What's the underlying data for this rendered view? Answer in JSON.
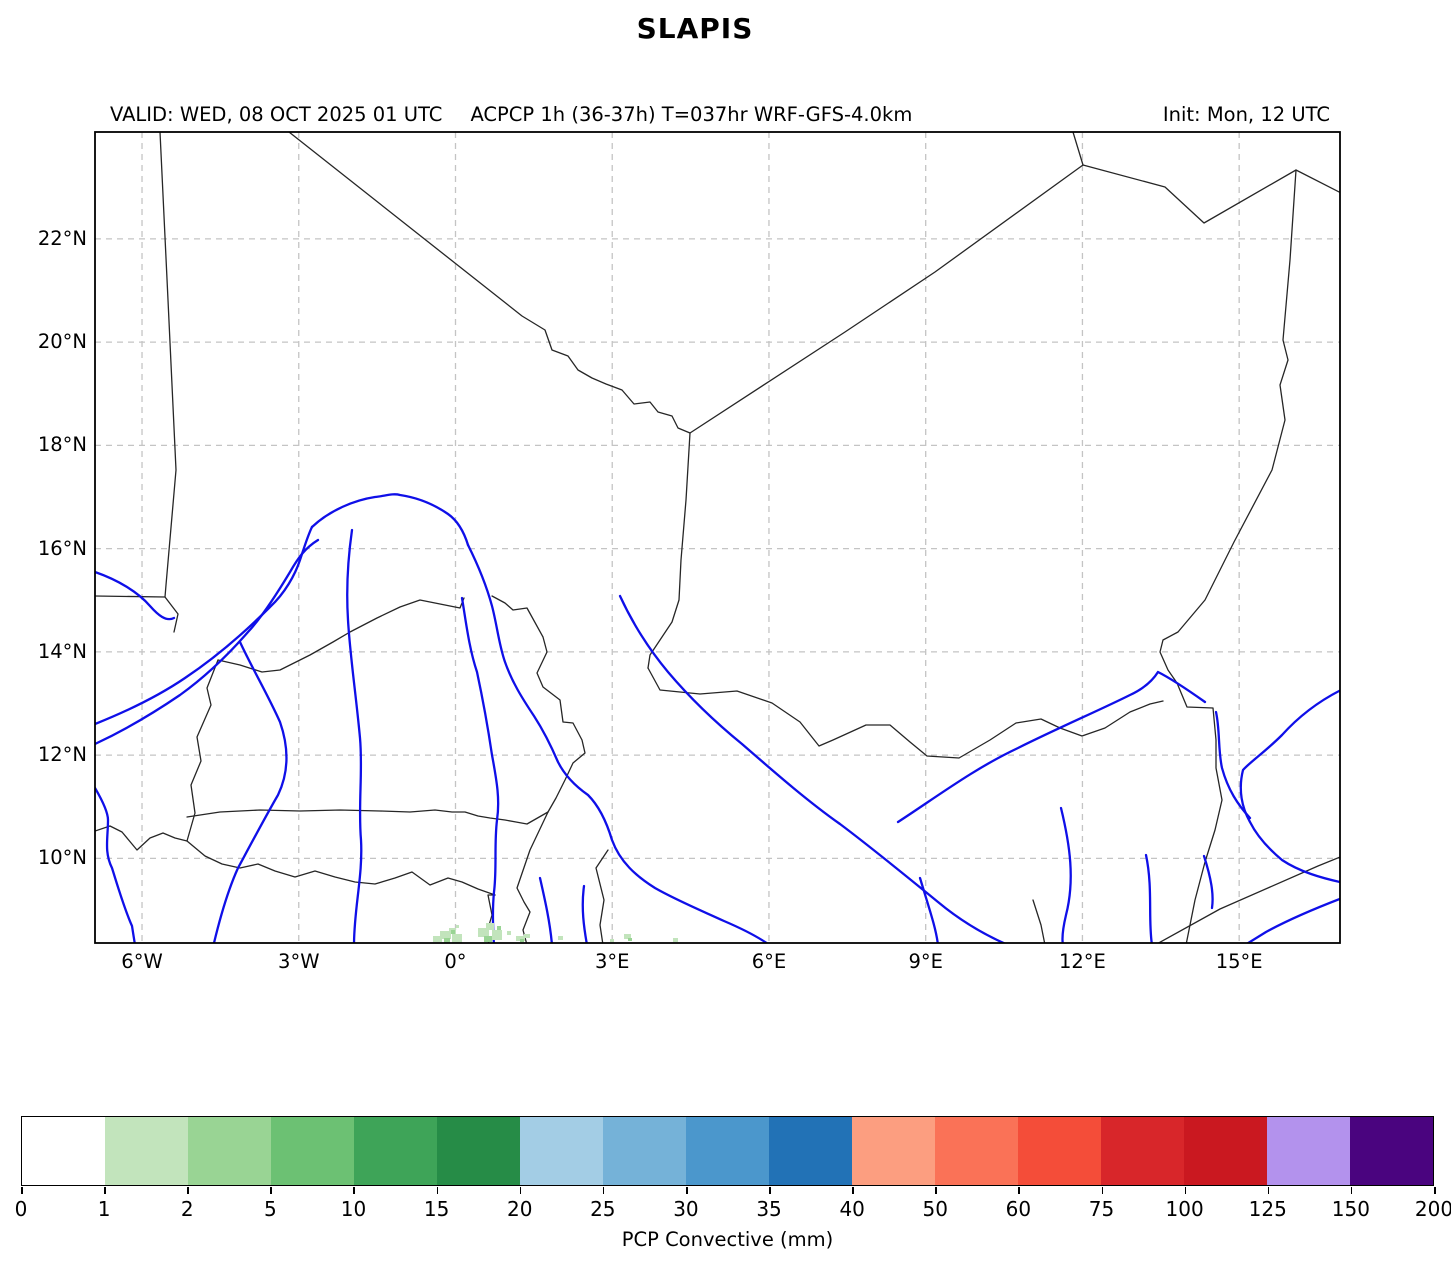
{
  "title": "SLAPIS",
  "header": {
    "valid_text": "VALID: WED, 08 OCT 2025 01 UTC",
    "info_text": "ACPCP 1h (36-37h) T=037hr WRF-GFS-4.0km",
    "init_text": "Init: Mon, 12 UTC"
  },
  "map": {
    "projection": "lat-lon grid",
    "grid_color": "#c4c4c4",
    "border_color": "#262626",
    "river_color": "#0f0fe8",
    "extent": {
      "lon_min": -6.9,
      "lon_max": 16.93,
      "lat_min": 8.36,
      "lat_max": 24.07
    },
    "x_ticks": [
      {
        "label": "6°W",
        "lon": -6
      },
      {
        "label": "3°W",
        "lon": -3
      },
      {
        "label": "0°",
        "lon": 0
      },
      {
        "label": "3°E",
        "lon": 3
      },
      {
        "label": "6°E",
        "lon": 6
      },
      {
        "label": "9°E",
        "lon": 9
      },
      {
        "label": "12°E",
        "lon": 12
      },
      {
        "label": "15°E",
        "lon": 15
      }
    ],
    "y_ticks": [
      {
        "label": "22°N",
        "lat": 22
      },
      {
        "label": "20°N",
        "lat": 20
      },
      {
        "label": "18°N",
        "lat": 18
      },
      {
        "label": "16°N",
        "lat": 16
      },
      {
        "label": "14°N",
        "lat": 14
      },
      {
        "label": "12°N",
        "lat": 12
      },
      {
        "label": "10°N",
        "lat": 10
      }
    ],
    "precip_patches": [
      {
        "lon": -0.16,
        "lat": 8.5,
        "value_mm": "1-5"
      },
      {
        "lon": 0.66,
        "lat": 8.5,
        "value_mm": "1-5"
      },
      {
        "lon": 1.31,
        "lat": 8.45,
        "value_mm": "1-2"
      },
      {
        "lon": 2.0,
        "lat": 8.5,
        "value_mm": "1-2"
      },
      {
        "lon": 3.26,
        "lat": 8.45,
        "value_mm": "1-2"
      },
      {
        "lon": 4.2,
        "lat": 8.4,
        "value_mm": "1-2"
      }
    ]
  },
  "colorbar": {
    "label": "PCP Convective (mm)",
    "ticks": [
      "0",
      "1",
      "2",
      "5",
      "10",
      "15",
      "20",
      "25",
      "30",
      "35",
      "40",
      "50",
      "60",
      "75",
      "100",
      "125",
      "150",
      "200"
    ],
    "colors": [
      "#ffffff",
      "#c2e4bc",
      "#99d494",
      "#6cc173",
      "#3ea458",
      "#268c47",
      "#a3cde5",
      "#75b2d8",
      "#4b97cc",
      "#2272b6",
      "#fc9e80",
      "#fa7257",
      "#f44d39",
      "#d8262a",
      "#ca1820",
      "#b392ed",
      "#4a047f"
    ]
  }
}
